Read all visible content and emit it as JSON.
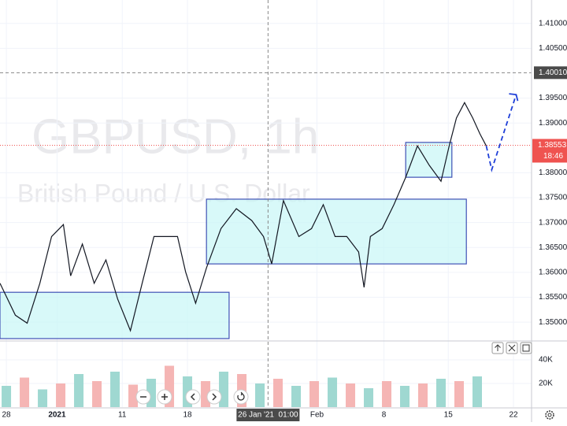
{
  "chart_data": {
    "type": "line",
    "title": "GBPUSD, 1h",
    "subtitle": "British Pound / U.S. Dollar",
    "x": [
      -0.7,
      1.0,
      2.3,
      3.7,
      5.0,
      6.3,
      7.1,
      8.4,
      9.7,
      11.0,
      12.3,
      13.7,
      15.0,
      16.3,
      17.6,
      18.9,
      19.8,
      20.9,
      22.1,
      23.7,
      25.4,
      27.1,
      28.4,
      29.3,
      30.6,
      32.3,
      33.7,
      35.0,
      36.3,
      37.6,
      38.9,
      39.5,
      40.2,
      41.5,
      42.8,
      44.1,
      45.4,
      46.7,
      48.0,
      48.9,
      49.7,
      50.6,
      51.5,
      52.3,
      53.0
    ],
    "values": [
      1.3578,
      1.3514,
      1.3498,
      1.3578,
      1.3672,
      1.3696,
      1.3593,
      1.3657,
      1.3578,
      1.3625,
      1.3546,
      1.3483,
      1.3578,
      1.3672,
      1.3672,
      1.3672,
      1.3601,
      1.3538,
      1.3609,
      1.3688,
      1.3728,
      1.3704,
      1.3672,
      1.3617,
      1.3744,
      1.3672,
      1.3688,
      1.3736,
      1.3672,
      1.3672,
      1.3641,
      1.357,
      1.3672,
      1.3688,
      1.3736,
      1.3791,
      1.3854,
      1.3815,
      1.3783,
      1.3854,
      1.391,
      1.3941,
      1.391,
      1.3878,
      1.3854
    ],
    "color": "#131722",
    "xlim": [
      -0.7,
      58
    ],
    "ylim": [
      1.3467,
      1.4147
    ],
    "xticks": [
      {
        "value": 0,
        "label": "28"
      },
      {
        "value": 5.6,
        "label": "2021"
      },
      {
        "value": 12.8,
        "label": "11"
      },
      {
        "value": 20,
        "label": "18"
      },
      {
        "value": 34.3,
        "label": "Feb"
      },
      {
        "value": 41.7,
        "label": "8"
      },
      {
        "value": 48.8,
        "label": "15"
      },
      {
        "value": 56,
        "label": "22"
      }
    ],
    "yticks": [
      {
        "value": 1.41,
        "label": "1.41000"
      },
      {
        "value": 1.405,
        "label": "1.40500"
      },
      {
        "value": 1.395,
        "label": "1.39500"
      },
      {
        "value": 1.39,
        "label": "1.39000"
      },
      {
        "value": 1.38,
        "label": "1.38000"
      },
      {
        "value": 1.375,
        "label": "1.37500"
      },
      {
        "value": 1.37,
        "label": "1.37000"
      },
      {
        "value": 1.365,
        "label": "1.36500"
      },
      {
        "value": 1.36,
        "label": "1.36000"
      },
      {
        "value": 1.355,
        "label": "1.35500"
      },
      {
        "value": 1.35,
        "label": "1.35000"
      }
    ],
    "grid": true,
    "crosshair": {
      "x": 28.9,
      "x_label": "26 Jan '21  01:00",
      "y": 1.4001,
      "y_label": "1.40010"
    },
    "last_price": {
      "value": 1.38553,
      "label": "1.38553",
      "countdown": "18:46",
      "color": "#ef5350"
    },
    "zones": [
      {
        "x": [
          -0.7,
          24.6
        ],
        "y": [
          1.3467,
          1.356
        ]
      },
      {
        "x": [
          22.1,
          50.8
        ],
        "y": [
          1.3617,
          1.3747
        ]
      },
      {
        "x": [
          44.1,
          49.2
        ],
        "y": [
          1.3791,
          1.3861
        ]
      }
    ],
    "zone_color": "#3f51b5",
    "projection": {
      "x": [
        53.0,
        53.6,
        56.3
      ],
      "values": [
        1.3854,
        1.3806,
        1.3957
      ],
      "color": "#1e3fd8"
    },
    "volume": {
      "x": [
        0,
        2,
        4,
        6,
        8,
        10,
        12,
        14,
        16,
        18,
        20,
        22,
        24,
        26,
        28,
        30,
        32,
        34,
        36,
        38,
        40,
        42,
        44,
        46,
        48,
        50,
        52
      ],
      "values": [
        18000,
        25000,
        15000,
        20000,
        28000,
        22000,
        30000,
        19000,
        24000,
        35000,
        26000,
        22000,
        30000,
        28000,
        20000,
        24000,
        18000,
        22000,
        25000,
        20000,
        16000,
        22000,
        18000,
        20000,
        24000,
        22000,
        26000
      ],
      "colors": [
        "#9fd8d1",
        "#f5b5b4"
      ],
      "ylim": [
        0,
        54000
      ],
      "yticks": [
        {
          "value": 20000,
          "label": "20K"
        },
        {
          "value": 40000,
          "label": "40K"
        }
      ]
    }
  }
}
